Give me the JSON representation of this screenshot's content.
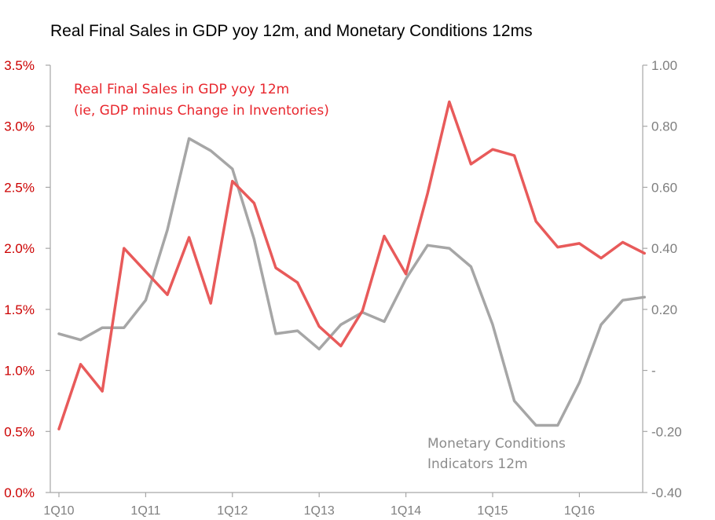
{
  "chart_data": {
    "type": "line",
    "title": "Real Final Sales in GDP yoy 12m, and Monetary Conditions 12ms",
    "colors": {
      "sales": "#e85a5a",
      "monetary": "#a6a6a6",
      "left_axis_text": "#cc0000",
      "right_axis_text": "#7f7f7f",
      "axis_line": "#a6a6a6"
    },
    "x_tick_labels": [
      "1Q10",
      "1Q11",
      "1Q12",
      "1Q13",
      "1Q14",
      "1Q15",
      "1Q16"
    ],
    "y_left": {
      "min": 0.0,
      "max": 3.5,
      "tick_values": [
        0.0,
        0.5,
        1.0,
        1.5,
        2.0,
        2.5,
        3.0,
        3.5
      ],
      "tick_labels": [
        "0.0%",
        "0.5%",
        "1.0%",
        "1.5%",
        "2.0%",
        "2.5%",
        "3.0%",
        "3.5%"
      ]
    },
    "y_right": {
      "min": -0.4,
      "max": 1.0,
      "tick_values": [
        -0.4,
        -0.2,
        0.0,
        0.2,
        0.4,
        0.6,
        0.8,
        1.0
      ],
      "tick_labels": [
        "-0.40",
        "-0.20",
        "-",
        "0.20",
        "0.40",
        "0.60",
        "0.80",
        "1.00"
      ]
    },
    "series": [
      {
        "key": "sales",
        "axis": "left",
        "label_lines": [
          "Real Final Sales in GDP yoy 12m",
          "(ie, GDP minus Change in Inventories)"
        ],
        "values": [
          0.52,
          1.05,
          0.83,
          2.0,
          1.81,
          1.62,
          2.09,
          1.55,
          2.55,
          2.37,
          1.84,
          1.72,
          1.36,
          1.2,
          1.49,
          2.1,
          1.79,
          2.45,
          3.2,
          2.69,
          2.81,
          2.76,
          2.22,
          2.01,
          2.04,
          1.92,
          2.05,
          1.96
        ]
      },
      {
        "key": "monetary",
        "axis": "right",
        "label_lines": [
          "Monetary Conditions",
          "Indicators 12m"
        ],
        "values": [
          0.12,
          0.1,
          0.14,
          0.14,
          0.23,
          0.46,
          0.76,
          0.72,
          0.66,
          0.43,
          0.12,
          0.13,
          0.07,
          0.15,
          0.19,
          0.16,
          0.3,
          0.41,
          0.4,
          0.34,
          0.15,
          -0.1,
          -0.18,
          -0.18,
          -0.04,
          0.15,
          0.23,
          0.24
        ]
      }
    ]
  }
}
